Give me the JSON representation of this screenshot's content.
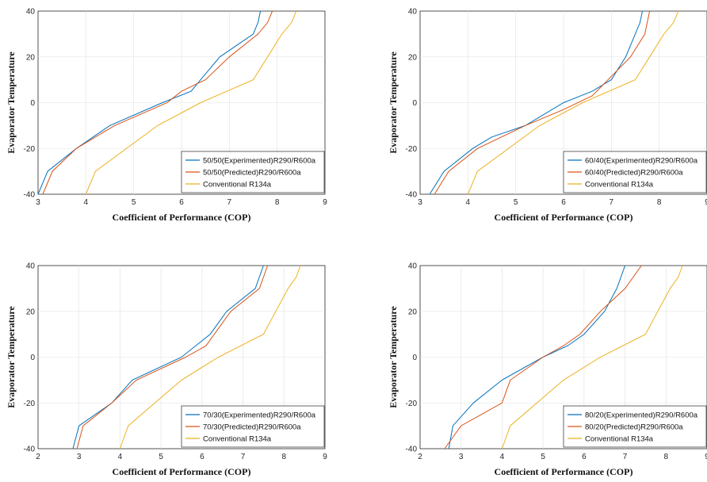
{
  "chart_data": [
    {
      "type": "line",
      "xlabel": "Coefficient of Performance (COP)",
      "ylabel": "Evaporator Temperature",
      "xlim": [
        3,
        9
      ],
      "ylim": [
        -40,
        40
      ],
      "xticks": [
        3,
        4,
        5,
        6,
        7,
        8,
        9
      ],
      "yticks": [
        -40,
        -20,
        0,
        20,
        40
      ],
      "grid": true,
      "legend_position": "bottom-right",
      "series": [
        {
          "name": "50/50(Experimented)R290/R600a",
          "color": "#0072bd",
          "points": [
            [
              3.0,
              -40
            ],
            [
              3.2,
              -30
            ],
            [
              3.8,
              -20
            ],
            [
              4.5,
              -10
            ],
            [
              5.6,
              0
            ],
            [
              6.2,
              5
            ],
            [
              6.4,
              10
            ],
            [
              6.8,
              20
            ],
            [
              7.5,
              30
            ],
            [
              7.6,
              35
            ],
            [
              7.65,
              40
            ]
          ]
        },
        {
          "name": "50/50(Predicted)R290/R600a",
          "color": "#d95319",
          "points": [
            [
              3.1,
              -40
            ],
            [
              3.3,
              -30
            ],
            [
              3.8,
              -20
            ],
            [
              4.6,
              -10
            ],
            [
              5.7,
              0
            ],
            [
              6.0,
              5
            ],
            [
              6.5,
              10
            ],
            [
              7.0,
              20
            ],
            [
              7.6,
              30
            ],
            [
              7.8,
              35
            ],
            [
              7.9,
              40
            ]
          ]
        },
        {
          "name": "Conventional R134a",
          "color": "#edb120",
          "points": [
            [
              4.0,
              -40
            ],
            [
              4.2,
              -30
            ],
            [
              5.5,
              -10
            ],
            [
              6.4,
              0
            ],
            [
              7.5,
              10
            ],
            [
              7.8,
              20
            ],
            [
              8.1,
              30
            ],
            [
              8.3,
              35
            ],
            [
              8.4,
              40
            ]
          ]
        }
      ]
    },
    {
      "type": "line",
      "xlabel": "Coefficient of Performance (COP)",
      "ylabel": "Evaporator Temperature",
      "xlim": [
        3,
        9
      ],
      "ylim": [
        -40,
        40
      ],
      "xticks": [
        3,
        4,
        5,
        6,
        7,
        8,
        9
      ],
      "yticks": [
        -40,
        -20,
        0,
        20,
        40
      ],
      "grid": true,
      "legend_position": "bottom-right",
      "series": [
        {
          "name": "60/40(Experimented)R290/R600a",
          "color": "#0072bd",
          "points": [
            [
              3.2,
              -40
            ],
            [
              3.5,
              -30
            ],
            [
              4.1,
              -20
            ],
            [
              4.5,
              -15
            ],
            [
              5.2,
              -10
            ],
            [
              6.0,
              0
            ],
            [
              6.6,
              5
            ],
            [
              7.0,
              10
            ],
            [
              7.3,
              20
            ],
            [
              7.5,
              30
            ],
            [
              7.6,
              35
            ],
            [
              7.65,
              40
            ]
          ]
        },
        {
          "name": "60/40(Predicted)R290/R600a",
          "color": "#d95319",
          "points": [
            [
              3.3,
              -40
            ],
            [
              3.6,
              -30
            ],
            [
              4.2,
              -20
            ],
            [
              5.2,
              -10
            ],
            [
              6.0,
              -3
            ],
            [
              6.6,
              3
            ],
            [
              7.4,
              20
            ],
            [
              7.7,
              30
            ],
            [
              7.75,
              35
            ],
            [
              7.8,
              40
            ]
          ]
        },
        {
          "name": "Conventional R134a",
          "color": "#edb120",
          "points": [
            [
              4.0,
              -40
            ],
            [
              4.2,
              -30
            ],
            [
              5.5,
              -10
            ],
            [
              6.4,
              0
            ],
            [
              7.5,
              10
            ],
            [
              7.8,
              20
            ],
            [
              8.1,
              30
            ],
            [
              8.3,
              35
            ],
            [
              8.4,
              40
            ]
          ]
        }
      ]
    },
    {
      "type": "line",
      "xlabel": "Coefficient of Performance (COP)",
      "ylabel": "Evaporator Temperature",
      "xlim": [
        2,
        9
      ],
      "ylim": [
        -40,
        40
      ],
      "xticks": [
        2,
        3,
        4,
        5,
        6,
        7,
        8,
        9
      ],
      "yticks": [
        -40,
        -20,
        0,
        20,
        40
      ],
      "grid": true,
      "legend_position": "bottom-right",
      "series": [
        {
          "name": "70/30(Experimented)R290/R600a",
          "color": "#0072bd",
          "points": [
            [
              2.85,
              -40
            ],
            [
              3.0,
              -30
            ],
            [
              3.8,
              -20
            ],
            [
              4.3,
              -10
            ],
            [
              5.5,
              0
            ],
            [
              6.2,
              10
            ],
            [
              6.6,
              20
            ],
            [
              7.3,
              30
            ],
            [
              7.5,
              40
            ]
          ]
        },
        {
          "name": "70/30(Predicted)R290/R600a",
          "color": "#d95319",
          "points": [
            [
              2.95,
              -40
            ],
            [
              3.1,
              -30
            ],
            [
              3.8,
              -20
            ],
            [
              4.4,
              -10
            ],
            [
              5.6,
              0
            ],
            [
              6.1,
              5
            ],
            [
              6.3,
              10
            ],
            [
              6.7,
              20
            ],
            [
              7.4,
              30
            ],
            [
              7.6,
              40
            ]
          ]
        },
        {
          "name": "Conventional R134a",
          "color": "#edb120",
          "points": [
            [
              4.0,
              -40
            ],
            [
              4.2,
              -30
            ],
            [
              5.5,
              -10
            ],
            [
              6.4,
              0
            ],
            [
              7.5,
              10
            ],
            [
              7.8,
              20
            ],
            [
              8.1,
              30
            ],
            [
              8.3,
              35
            ],
            [
              8.4,
              40
            ]
          ]
        }
      ]
    },
    {
      "type": "line",
      "xlabel": "Coefficient of Performance (COP)",
      "ylabel": "Evaporator Temperature",
      "xlim": [
        2,
        9
      ],
      "ylim": [
        -40,
        40
      ],
      "xticks": [
        2,
        3,
        4,
        5,
        6,
        7,
        8,
        9
      ],
      "yticks": [
        -40,
        -20,
        0,
        20,
        40
      ],
      "grid": true,
      "legend_position": "bottom-right",
      "series": [
        {
          "name": "80/20(Experimented)R290/R600a",
          "color": "#0072bd",
          "points": [
            [
              2.7,
              -40
            ],
            [
              2.8,
              -30
            ],
            [
              3.3,
              -20
            ],
            [
              4.0,
              -10
            ],
            [
              5.0,
              0
            ],
            [
              5.6,
              5
            ],
            [
              6.0,
              10
            ],
            [
              6.5,
              20
            ],
            [
              6.8,
              30
            ],
            [
              7.0,
              40
            ]
          ]
        },
        {
          "name": "80/20(Predicted)R290/R600a",
          "color": "#d95319",
          "points": [
            [
              2.6,
              -40
            ],
            [
              3.0,
              -30
            ],
            [
              4.0,
              -20
            ],
            [
              4.2,
              -10
            ],
            [
              5.0,
              0
            ],
            [
              5.5,
              5
            ],
            [
              5.9,
              10
            ],
            [
              6.4,
              20
            ],
            [
              7.0,
              30
            ],
            [
              7.4,
              40
            ]
          ]
        },
        {
          "name": "Conventional R134a",
          "color": "#edb120",
          "points": [
            [
              4.0,
              -40
            ],
            [
              4.2,
              -30
            ],
            [
              5.5,
              -10
            ],
            [
              6.4,
              0
            ],
            [
              7.5,
              10
            ],
            [
              7.8,
              20
            ],
            [
              8.1,
              30
            ],
            [
              8.3,
              35
            ],
            [
              8.4,
              40
            ]
          ]
        }
      ]
    }
  ]
}
